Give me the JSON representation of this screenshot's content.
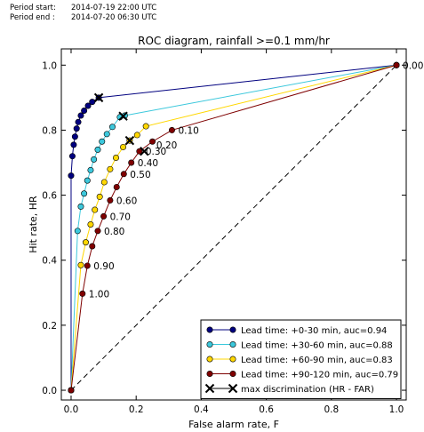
{
  "period": {
    "start_label": "Period start:",
    "start_value": "2014-07-19 22:00 UTC",
    "end_label": "Period end :",
    "end_value": "2014-07-20 06:30 UTC"
  },
  "chart_data": {
    "type": "line",
    "title": "ROC diagram, rainfall >=0.1 mm/hr",
    "xlabel": "False alarm rate, F",
    "ylabel": "Hit rate, HR",
    "xlim": [
      -0.03,
      1.03
    ],
    "ylim": [
      -0.03,
      1.05
    ],
    "xticks": [
      "0.0",
      "0.2",
      "0.4",
      "0.6",
      "0.8",
      "1.0"
    ],
    "yticks": [
      "0.0",
      "0.2",
      "0.4",
      "0.6",
      "0.8",
      "1.0"
    ],
    "grid": false,
    "legend_position": "lower-right",
    "series": [
      {
        "name": "Lead time: +0-30 min, auc=0.94",
        "color": "#00007f",
        "points": [
          [
            0,
            0
          ],
          [
            0.0,
            0.66
          ],
          [
            0.004,
            0.72
          ],
          [
            0.008,
            0.755
          ],
          [
            0.012,
            0.78
          ],
          [
            0.017,
            0.805
          ],
          [
            0.022,
            0.825
          ],
          [
            0.03,
            0.845
          ],
          [
            0.04,
            0.86
          ],
          [
            0.052,
            0.875
          ],
          [
            0.065,
            0.887
          ],
          [
            0.085,
            0.9
          ],
          [
            1,
            1
          ]
        ]
      },
      {
        "name": "Lead time: +30-60 min, auc=0.88",
        "color": "#3cc8dc",
        "points": [
          [
            0,
            0
          ],
          [
            0.02,
            0.49
          ],
          [
            0.03,
            0.565
          ],
          [
            0.04,
            0.605
          ],
          [
            0.05,
            0.645
          ],
          [
            0.06,
            0.677
          ],
          [
            0.07,
            0.71
          ],
          [
            0.082,
            0.74
          ],
          [
            0.095,
            0.765
          ],
          [
            0.11,
            0.788
          ],
          [
            0.127,
            0.81
          ],
          [
            0.15,
            0.84
          ],
          [
            0.165,
            0.845
          ],
          [
            1,
            1
          ]
        ]
      },
      {
        "name": "Lead time: +60-90 min, auc=0.83",
        "color": "#ffd700",
        "points": [
          [
            0,
            0
          ],
          [
            0.03,
            0.385
          ],
          [
            0.045,
            0.455
          ],
          [
            0.06,
            0.51
          ],
          [
            0.073,
            0.555
          ],
          [
            0.088,
            0.595
          ],
          [
            0.102,
            0.64
          ],
          [
            0.12,
            0.68
          ],
          [
            0.138,
            0.715
          ],
          [
            0.16,
            0.748
          ],
          [
            0.18,
            0.768
          ],
          [
            0.203,
            0.785
          ],
          [
            0.23,
            0.812
          ],
          [
            1,
            1
          ]
        ]
      },
      {
        "name": "Lead time: +90-120 min, auc=0.79",
        "color": "#7f0000",
        "points": [
          [
            0,
            0
          ],
          [
            0.035,
            0.297
          ],
          [
            0.05,
            0.383
          ],
          [
            0.065,
            0.443
          ],
          [
            0.082,
            0.49
          ],
          [
            0.1,
            0.535
          ],
          [
            0.12,
            0.584
          ],
          [
            0.14,
            0.625
          ],
          [
            0.162,
            0.665
          ],
          [
            0.185,
            0.7
          ],
          [
            0.21,
            0.735
          ],
          [
            0.25,
            0.765
          ],
          [
            0.31,
            0.8
          ],
          [
            1,
            1
          ]
        ]
      }
    ],
    "threshold_labels": [
      {
        "text": "0.00",
        "x": 1.0,
        "y": 1.0
      },
      {
        "text": "0.10",
        "x": 0.31,
        "y": 0.8
      },
      {
        "text": "0.20",
        "x": 0.243,
        "y": 0.755
      },
      {
        "text": "0.30",
        "x": 0.21,
        "y": 0.735
      },
      {
        "text": "0.40",
        "x": 0.185,
        "y": 0.7
      },
      {
        "text": "0.50",
        "x": 0.162,
        "y": 0.665
      },
      {
        "text": "0.60",
        "x": 0.12,
        "y": 0.584
      },
      {
        "text": "0.70",
        "x": 0.1,
        "y": 0.535
      },
      {
        "text": "0.80",
        "x": 0.082,
        "y": 0.49
      },
      {
        "text": "0.90",
        "x": 0.05,
        "y": 0.383
      },
      {
        "text": "1.00",
        "x": 0.035,
        "y": 0.297
      }
    ],
    "max_discrimination": {
      "name": "max discrimination (HR - FAR)",
      "color": "#000000",
      "points": [
        [
          0.085,
          0.9
        ],
        [
          0.16,
          0.843
        ],
        [
          0.18,
          0.768
        ],
        [
          0.225,
          0.735
        ]
      ]
    },
    "diagonal": {
      "from": [
        0,
        0
      ],
      "to": [
        1,
        1
      ],
      "style": "dashed"
    }
  }
}
